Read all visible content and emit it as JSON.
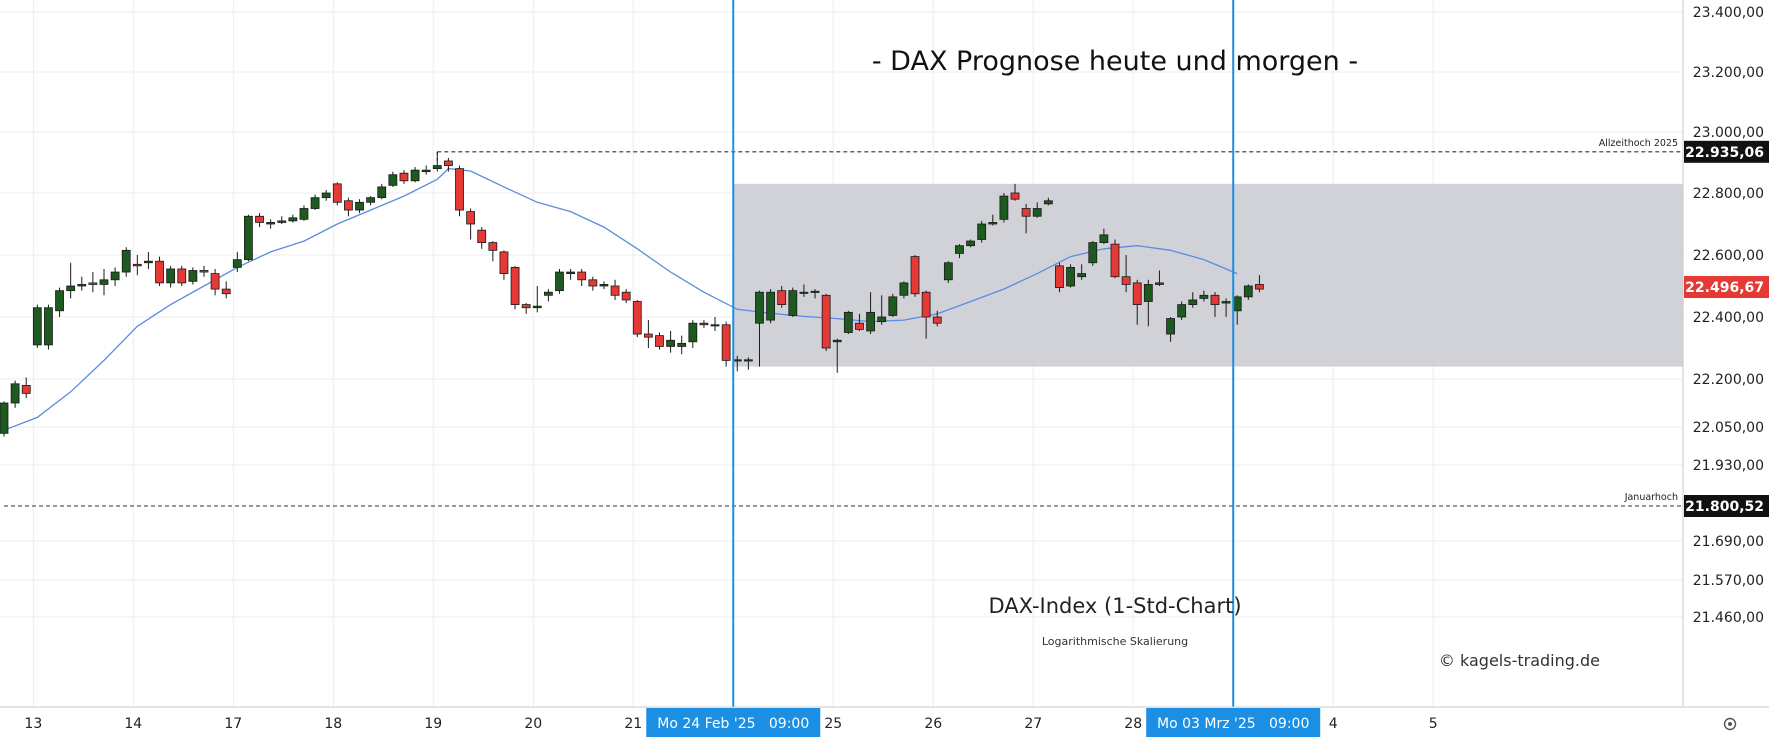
{
  "chart_data": {
    "type": "candlestick",
    "title": "- DAX Prognose heute und morgen -",
    "subtitle": "DAX-Index (1-Std-Chart)",
    "scale_note": "Logarithmische Skalierung",
    "watermark": "© kagels-trading.de",
    "y_ticks": [
      {
        "value": 23400,
        "label": "23.400,00"
      },
      {
        "value": 23200,
        "label": "23.200,00"
      },
      {
        "value": 23000,
        "label": "23.000,00"
      },
      {
        "value": 22800,
        "label": "22.800,00"
      },
      {
        "value": 22600,
        "label": "22.600,00"
      },
      {
        "value": 22400,
        "label": "22.400,00"
      },
      {
        "value": 22200,
        "label": "22.200,00"
      },
      {
        "value": 22050,
        "label": "22.050,00"
      },
      {
        "value": 21930,
        "label": "21.930,00"
      },
      {
        "value": 21690,
        "label": "21.690,00"
      },
      {
        "value": 21570,
        "label": "21.570,00"
      },
      {
        "value": 21460,
        "label": "21.460,00"
      }
    ],
    "x_ticks": [
      {
        "label": "13",
        "bar": 3
      },
      {
        "label": "14",
        "bar": 12
      },
      {
        "label": "17",
        "bar": 21
      },
      {
        "label": "18",
        "bar": 30
      },
      {
        "label": "19",
        "bar": 39
      },
      {
        "label": "20",
        "bar": 48
      },
      {
        "label": "21",
        "bar": 57
      },
      {
        "label": "25",
        "bar": 75
      },
      {
        "label": "26",
        "bar": 84
      },
      {
        "label": "27",
        "bar": 93
      },
      {
        "label": "28",
        "bar": 102
      },
      {
        "label": "4",
        "bar": 120
      },
      {
        "label": "5",
        "bar": 129
      }
    ],
    "x_highlights": [
      {
        "label": "Mo 24 Feb '25   09:00",
        "bar": 66
      },
      {
        "label": "Mo 03 Mrz '25   09:00",
        "bar": 111
      }
    ],
    "bull_color": "#1e5a20",
    "bear_color": "#e53935",
    "ma_color": "#5b8dde",
    "highlight_color": "#1a8fe3",
    "range_box": {
      "start_bar": 66,
      "end_bar": 133,
      "low": 22240,
      "high": 22830,
      "color": "#cfcfd6"
    },
    "levels": [
      {
        "value": 22935.06,
        "label": "22.935,06",
        "name": "Allzeithoch 2025",
        "start_bar": 39
      },
      {
        "value": 21800.52,
        "label": "21.800,52",
        "name": "Januarhoch",
        "start_bar": 0
      }
    ],
    "last_price": {
      "value": 22496.67,
      "label": "22.496,67",
      "color": "#e53935"
    },
    "candles": [
      [
        22030,
        22125,
        22020,
        22130
      ],
      [
        22125,
        22185,
        22110,
        22195
      ],
      [
        22180,
        22155,
        22140,
        22205
      ],
      [
        22310,
        22430,
        22300,
        22440
      ],
      [
        22310,
        22430,
        22295,
        22440
      ],
      [
        22420,
        22485,
        22400,
        22495
      ],
      [
        22485,
        22500,
        22460,
        22575
      ],
      [
        22500,
        22505,
        22485,
        22530
      ],
      [
        22510,
        22505,
        22480,
        22545
      ],
      [
        22505,
        22520,
        22470,
        22555
      ],
      [
        22520,
        22545,
        22500,
        22560
      ],
      [
        22545,
        22615,
        22530,
        22625
      ],
      [
        22570,
        22565,
        22535,
        22600
      ],
      [
        22575,
        22580,
        22555,
        22610
      ],
      [
        22580,
        22510,
        22500,
        22595
      ],
      [
        22510,
        22555,
        22495,
        22565
      ],
      [
        22555,
        22510,
        22500,
        22565
      ],
      [
        22515,
        22550,
        22505,
        22560
      ],
      [
        22550,
        22545,
        22530,
        22565
      ],
      [
        22540,
        22490,
        22470,
        22555
      ],
      [
        22490,
        22475,
        22460,
        22515
      ],
      [
        22560,
        22585,
        22545,
        22610
      ],
      [
        22585,
        22725,
        22580,
        22730
      ],
      [
        22725,
        22705,
        22690,
        22735
      ],
      [
        22700,
        22705,
        22685,
        22715
      ],
      [
        22705,
        22710,
        22700,
        22725
      ],
      [
        22710,
        22720,
        22705,
        22730
      ],
      [
        22715,
        22750,
        22710,
        22760
      ],
      [
        22750,
        22785,
        22745,
        22795
      ],
      [
        22785,
        22800,
        22775,
        22810
      ],
      [
        22830,
        22770,
        22760,
        22835
      ],
      [
        22775,
        22745,
        22725,
        22785
      ],
      [
        22745,
        22770,
        22735,
        22780
      ],
      [
        22770,
        22785,
        22760,
        22790
      ],
      [
        22785,
        22820,
        22780,
        22830
      ],
      [
        22825,
        22860,
        22820,
        22870
      ],
      [
        22865,
        22840,
        22830,
        22875
      ],
      [
        22840,
        22875,
        22835,
        22885
      ],
      [
        22870,
        22875,
        22860,
        22890
      ],
      [
        22880,
        22890,
        22870,
        22935
      ],
      [
        22905,
        22890,
        22870,
        22915
      ],
      [
        22880,
        22745,
        22725,
        22890
      ],
      [
        22740,
        22700,
        22650,
        22750
      ],
      [
        22680,
        22640,
        22620,
        22690
      ],
      [
        22640,
        22615,
        22580,
        22645
      ],
      [
        22610,
        22540,
        22520,
        22615
      ],
      [
        22560,
        22440,
        22425,
        22565
      ],
      [
        22440,
        22430,
        22410,
        22445
      ],
      [
        22430,
        22435,
        22415,
        22500
      ],
      [
        22470,
        22480,
        22450,
        22490
      ],
      [
        22485,
        22545,
        22475,
        22555
      ],
      [
        22540,
        22545,
        22520,
        22555
      ],
      [
        22545,
        22520,
        22500,
        22555
      ],
      [
        22520,
        22500,
        22485,
        22530
      ],
      [
        22500,
        22505,
        22490,
        22515
      ],
      [
        22500,
        22470,
        22455,
        22520
      ],
      [
        22480,
        22455,
        22445,
        22490
      ],
      [
        22450,
        22345,
        22335,
        22455
      ],
      [
        22345,
        22335,
        22300,
        22390
      ],
      [
        22340,
        22305,
        22295,
        22350
      ],
      [
        22305,
        22325,
        22285,
        22355
      ],
      [
        22305,
        22315,
        22280,
        22340
      ],
      [
        22320,
        22380,
        22300,
        22390
      ],
      [
        22380,
        22375,
        22365,
        22390
      ],
      [
        22375,
        22375,
        22355,
        22400
      ],
      [
        22375,
        22260,
        22240,
        22385
      ],
      [
        22258,
        22262,
        22225,
        22275
      ],
      [
        22258,
        22262,
        22230,
        22270
      ],
      [
        22380,
        22480,
        22240,
        22485
      ],
      [
        22390,
        22480,
        22380,
        22490
      ],
      [
        22485,
        22440,
        22430,
        22500
      ],
      [
        22405,
        22485,
        22400,
        22495
      ],
      [
        22480,
        22480,
        22465,
        22505
      ],
      [
        22480,
        22483,
        22460,
        22490
      ],
      [
        22470,
        22300,
        22290,
        22475
      ],
      [
        22320,
        22325,
        22220,
        22330
      ],
      [
        22350,
        22415,
        22345,
        22420
      ],
      [
        22380,
        22360,
        22355,
        22410
      ],
      [
        22355,
        22415,
        22345,
        22480
      ],
      [
        22385,
        22400,
        22375,
        22470
      ],
      [
        22405,
        22465,
        22400,
        22475
      ],
      [
        22470,
        22510,
        22460,
        22515
      ],
      [
        22595,
        22475,
        22465,
        22600
      ],
      [
        22480,
        22400,
        22330,
        22485
      ],
      [
        22400,
        22380,
        22370,
        22420
      ],
      [
        22520,
        22575,
        22510,
        22580
      ],
      [
        22605,
        22630,
        22590,
        22635
      ],
      [
        22630,
        22645,
        22625,
        22650
      ],
      [
        22650,
        22700,
        22640,
        22710
      ],
      [
        22700,
        22705,
        22695,
        22730
      ],
      [
        22715,
        22790,
        22705,
        22800
      ],
      [
        22800,
        22780,
        22775,
        22830
      ],
      [
        22750,
        22725,
        22670,
        22765
      ],
      [
        22725,
        22750,
        22720,
        22770
      ],
      [
        22765,
        22775,
        22760,
        22785
      ],
      [
        22565,
        22495,
        22480,
        22575
      ],
      [
        22500,
        22560,
        22495,
        22570
      ],
      [
        22530,
        22540,
        22520,
        22570
      ],
      [
        22575,
        22640,
        22565,
        22645
      ],
      [
        22640,
        22665,
        22635,
        22685
      ],
      [
        22635,
        22530,
        22525,
        22650
      ],
      [
        22530,
        22505,
        22480,
        22600
      ],
      [
        22510,
        22440,
        22375,
        22520
      ],
      [
        22450,
        22505,
        22370,
        22520
      ],
      [
        22505,
        22510,
        22500,
        22550
      ],
      [
        22345,
        22395,
        22320,
        22400
      ],
      [
        22400,
        22440,
        22390,
        22450
      ],
      [
        22440,
        22455,
        22430,
        22480
      ],
      [
        22460,
        22470,
        22450,
        22485
      ],
      [
        22470,
        22440,
        22400,
        22480
      ],
      [
        22445,
        22450,
        22400,
        22460
      ],
      [
        22420,
        22465,
        22375,
        22470
      ],
      [
        22465,
        22500,
        22455,
        22505
      ],
      [
        22505,
        22490,
        22480,
        22535
      ]
    ],
    "ma": [
      [
        0,
        22040
      ],
      [
        3,
        22080
      ],
      [
        6,
        22160
      ],
      [
        9,
        22260
      ],
      [
        12,
        22370
      ],
      [
        15,
        22440
      ],
      [
        18,
        22500
      ],
      [
        21,
        22560
      ],
      [
        24,
        22610
      ],
      [
        27,
        22645
      ],
      [
        30,
        22700
      ],
      [
        33,
        22745
      ],
      [
        36,
        22790
      ],
      [
        39,
        22845
      ],
      [
        40,
        22880
      ],
      [
        42,
        22872
      ],
      [
        45,
        22820
      ],
      [
        48,
        22770
      ],
      [
        51,
        22740
      ],
      [
        54,
        22690
      ],
      [
        57,
        22620
      ],
      [
        60,
        22545
      ],
      [
        63,
        22480
      ],
      [
        66,
        22425
      ],
      [
        69,
        22412
      ],
      [
        72,
        22402
      ],
      [
        75,
        22395
      ],
      [
        78,
        22385
      ],
      [
        81,
        22390
      ],
      [
        84,
        22410
      ],
      [
        87,
        22450
      ],
      [
        90,
        22490
      ],
      [
        93,
        22540
      ],
      [
        96,
        22595
      ],
      [
        99,
        22620
      ],
      [
        102,
        22630
      ],
      [
        105,
        22615
      ],
      [
        108,
        22585
      ],
      [
        111,
        22540
      ]
    ]
  }
}
